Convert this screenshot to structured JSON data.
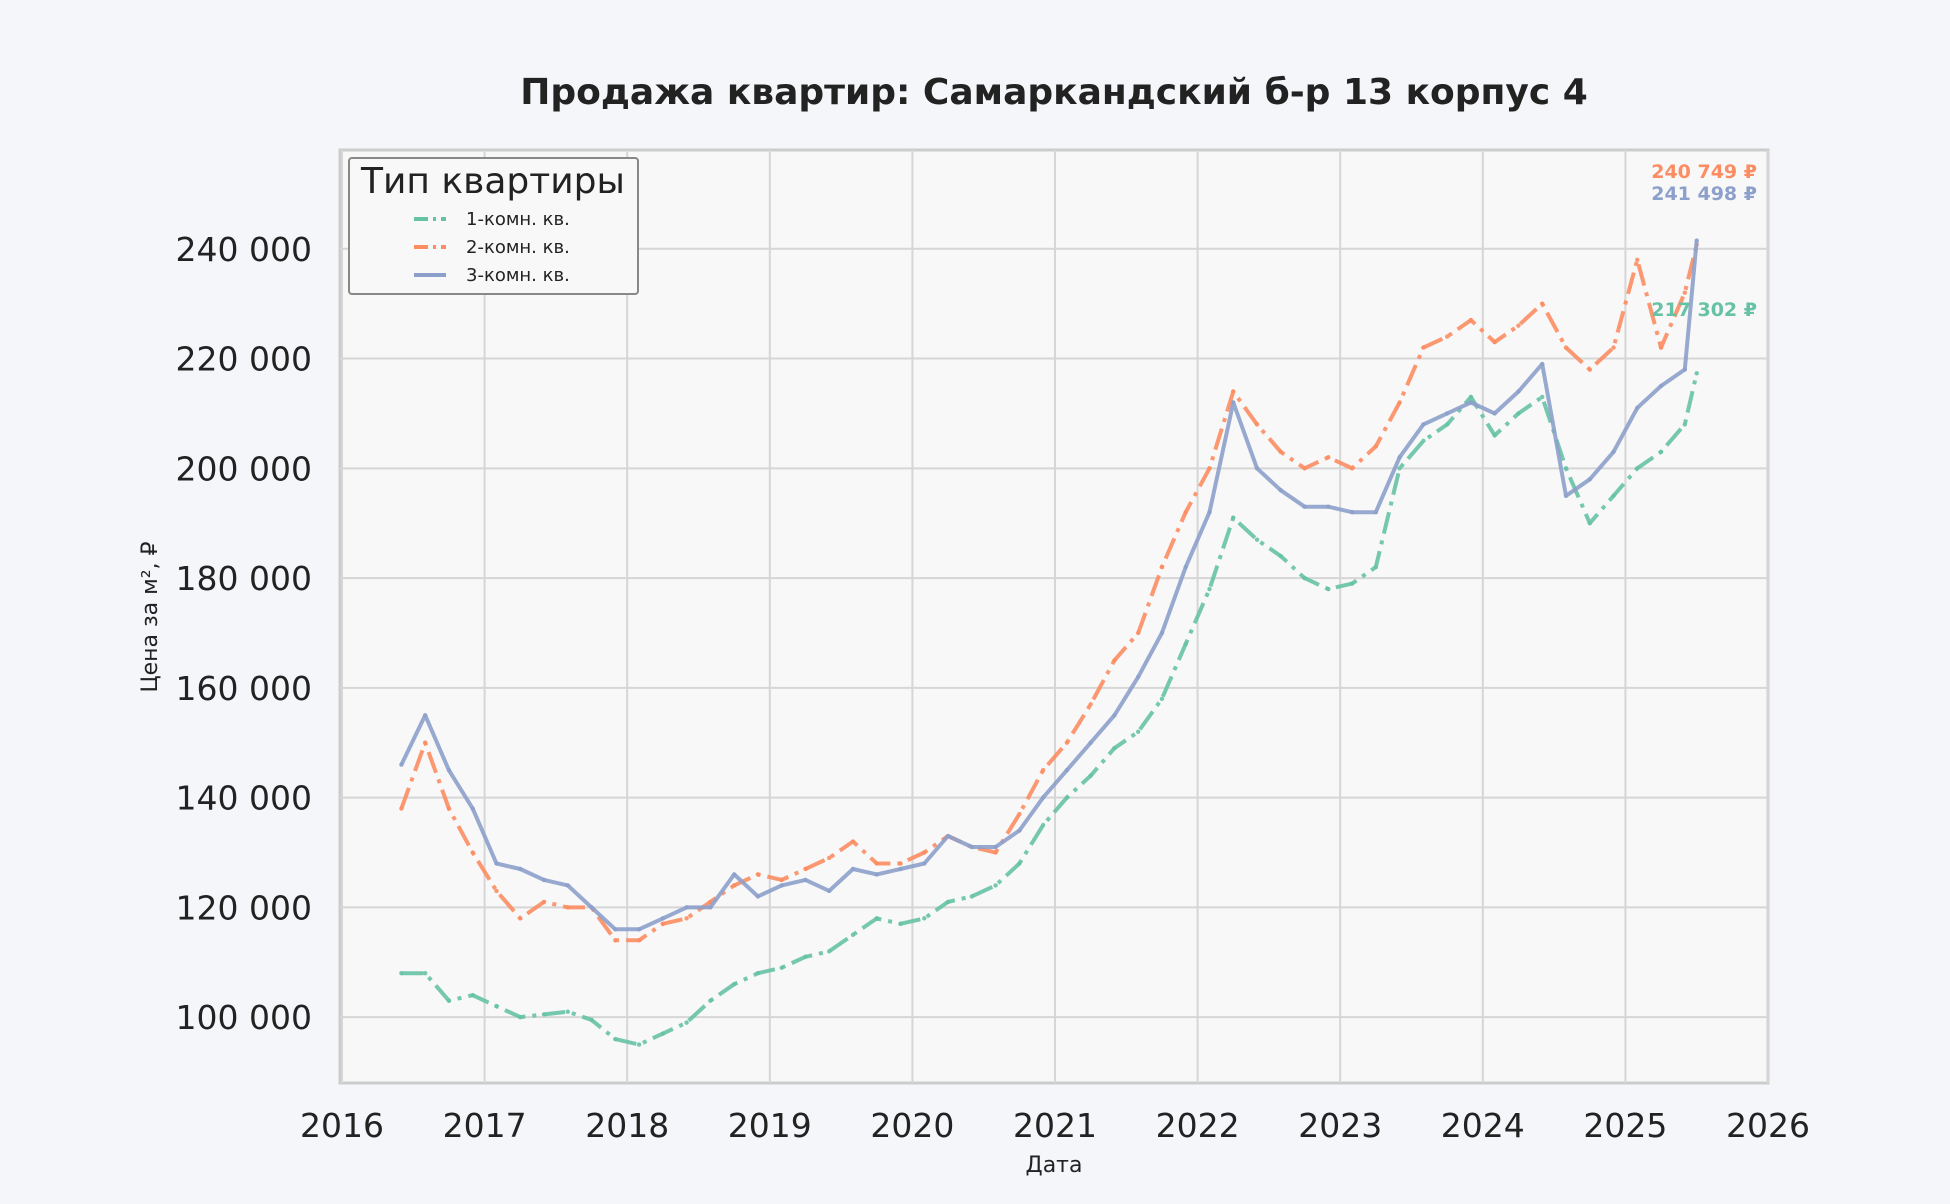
{
  "chart_data": {
    "type": "line",
    "title": "Продажа квартир: Самаркандский б-р 13 корпус 4",
    "xlabel": "Дата",
    "ylabel": "Цена за м², ₽",
    "x_ticks": [
      "2016",
      "2017",
      "2018",
      "2019",
      "2020",
      "2021",
      "2022",
      "2023",
      "2024",
      "2025",
      "2026"
    ],
    "y_ticks": [
      "100 000",
      "120 000",
      "140 000",
      "160 000",
      "180 000",
      "200 000",
      "220 000",
      "240 000"
    ],
    "xlim": [
      2016.0,
      2026.0
    ],
    "ylim": [
      88000,
      258000
    ],
    "grid": true,
    "legend": {
      "title": "Тип квартиры",
      "placement": "top-left"
    },
    "end_labels": [
      {
        "series": "2-комн. кв.",
        "text": "240 749 ₽",
        "value": 240749
      },
      {
        "series": "3-комн. кв.",
        "text": "241 498 ₽",
        "value": 241498
      },
      {
        "series": "1-комн. кв.",
        "text": "217 302 ₽",
        "value": 217302
      }
    ],
    "series": [
      {
        "name": "1-комн. кв.",
        "color": "#66c2a5",
        "dash": "dashdot",
        "x": [
          "2016-06",
          "2016-08",
          "2016-10",
          "2016-12",
          "2017-02",
          "2017-04",
          "2017-06",
          "2017-08",
          "2017-10",
          "2017-12",
          "2018-02",
          "2018-04",
          "2018-06",
          "2018-08",
          "2018-10",
          "2018-12",
          "2019-02",
          "2019-04",
          "2019-06",
          "2019-08",
          "2019-10",
          "2019-12",
          "2020-02",
          "2020-04",
          "2020-06",
          "2020-08",
          "2020-10",
          "2020-12",
          "2021-02",
          "2021-04",
          "2021-06",
          "2021-08",
          "2021-10",
          "2021-12",
          "2022-02",
          "2022-04",
          "2022-06",
          "2022-08",
          "2022-10",
          "2022-12",
          "2023-02",
          "2023-04",
          "2023-06",
          "2023-08",
          "2023-10",
          "2023-12",
          "2024-02",
          "2024-04",
          "2024-06",
          "2024-08",
          "2024-10",
          "2024-12",
          "2025-02",
          "2025-04",
          "2025-06",
          "2025-07"
        ],
        "values": [
          108000,
          108000,
          103000,
          104000,
          102000,
          100000,
          100500,
          101000,
          99500,
          96000,
          95000,
          97000,
          99000,
          103000,
          106000,
          108000,
          109000,
          111000,
          112000,
          115000,
          118000,
          117000,
          118000,
          121000,
          122000,
          124000,
          128000,
          135000,
          140000,
          144000,
          149000,
          152000,
          158000,
          168000,
          178000,
          191000,
          187000,
          184000,
          180000,
          178000,
          179000,
          182000,
          200000,
          205000,
          208000,
          213000,
          206000,
          210000,
          213000,
          200000,
          190000,
          195000,
          200000,
          203000,
          208000,
          217302
        ]
      },
      {
        "name": "2-комн. кв.",
        "color": "#fc8d62",
        "dash": "dashdot",
        "x": [
          "2016-06",
          "2016-08",
          "2016-10",
          "2016-12",
          "2017-02",
          "2017-04",
          "2017-06",
          "2017-08",
          "2017-10",
          "2017-12",
          "2018-02",
          "2018-04",
          "2018-06",
          "2018-08",
          "2018-10",
          "2018-12",
          "2019-02",
          "2019-04",
          "2019-06",
          "2019-08",
          "2019-10",
          "2019-12",
          "2020-02",
          "2020-04",
          "2020-06",
          "2020-08",
          "2020-10",
          "2020-12",
          "2021-02",
          "2021-04",
          "2021-06",
          "2021-08",
          "2021-10",
          "2021-12",
          "2022-02",
          "2022-04",
          "2022-06",
          "2022-08",
          "2022-10",
          "2022-12",
          "2023-02",
          "2023-04",
          "2023-06",
          "2023-08",
          "2023-10",
          "2023-12",
          "2024-02",
          "2024-04",
          "2024-06",
          "2024-08",
          "2024-10",
          "2024-12",
          "2025-02",
          "2025-04",
          "2025-06",
          "2025-07"
        ],
        "values": [
          138000,
          150000,
          138000,
          130000,
          123000,
          118000,
          121000,
          120000,
          120000,
          114000,
          114000,
          117000,
          118000,
          121000,
          124000,
          126000,
          125000,
          127000,
          129000,
          132000,
          128000,
          128000,
          130000,
          133000,
          131000,
          130000,
          137000,
          145000,
          150000,
          157000,
          165000,
          170000,
          182000,
          192000,
          200000,
          214000,
          208000,
          203000,
          200000,
          202000,
          200000,
          204000,
          212000,
          222000,
          224000,
          227000,
          223000,
          226000,
          230000,
          222000,
          218000,
          222000,
          238000,
          222000,
          232000,
          240749
        ]
      },
      {
        "name": "3-комн. кв.",
        "color": "#8da0cb",
        "dash": "solid",
        "x": [
          "2016-06",
          "2016-08",
          "2016-10",
          "2016-12",
          "2017-02",
          "2017-04",
          "2017-06",
          "2017-08",
          "2017-10",
          "2017-12",
          "2018-02",
          "2018-04",
          "2018-06",
          "2018-08",
          "2018-10",
          "2018-12",
          "2019-02",
          "2019-04",
          "2019-06",
          "2019-08",
          "2019-10",
          "2019-12",
          "2020-02",
          "2020-04",
          "2020-06",
          "2020-08",
          "2020-10",
          "2020-12",
          "2021-02",
          "2021-04",
          "2021-06",
          "2021-08",
          "2021-10",
          "2021-12",
          "2022-02",
          "2022-04",
          "2022-06",
          "2022-08",
          "2022-10",
          "2022-12",
          "2023-02",
          "2023-04",
          "2023-06",
          "2023-08",
          "2023-10",
          "2023-12",
          "2024-02",
          "2024-04",
          "2024-06",
          "2024-08",
          "2024-10",
          "2024-12",
          "2025-02",
          "2025-04",
          "2025-06",
          "2025-07"
        ],
        "values": [
          146000,
          155000,
          145000,
          138000,
          128000,
          127000,
          125000,
          124000,
          120000,
          116000,
          116000,
          118000,
          120000,
          120000,
          126000,
          122000,
          124000,
          125000,
          123000,
          127000,
          126000,
          127000,
          128000,
          133000,
          131000,
          131000,
          134000,
          140000,
          145000,
          150000,
          155000,
          162000,
          170000,
          182000,
          192000,
          212000,
          200000,
          196000,
          193000,
          193000,
          192000,
          192000,
          202000,
          208000,
          210000,
          212000,
          210000,
          214000,
          219000,
          195000,
          198000,
          203000,
          211000,
          215000,
          218000,
          241498
        ]
      }
    ]
  }
}
